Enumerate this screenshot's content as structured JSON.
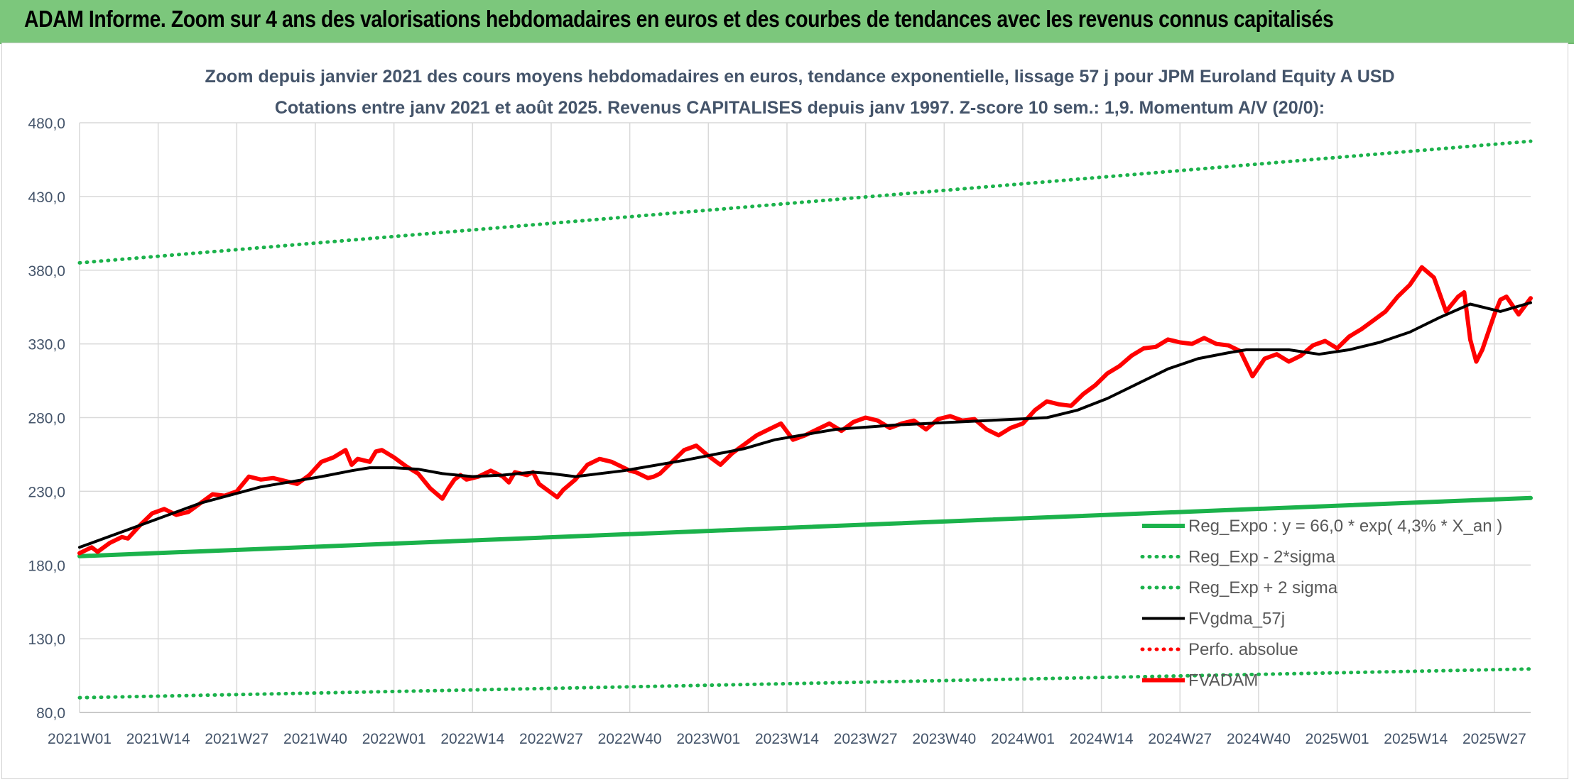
{
  "header": {
    "title": "ADAM Informe. Zoom sur 4 ans des valorisations hebdomadaires en euros et des courbes de tendances avec les revenus connus capitalisés"
  },
  "colors": {
    "header_bg": "#7cc77c",
    "trend_green": "#1bb24b",
    "fvadam_red": "#ff0000",
    "fvgdma_black": "#000000",
    "grid": "#d9d9d9",
    "text": "#44546a"
  },
  "chart_data": {
    "type": "line",
    "title": "Zoom depuis janvier 2021 des cours moyens hebdomadaires en euros, tendance exponentielle, lissage 57 j pour JPM Euroland Equity A USD",
    "subtitle": "Cotations entre janv 2021 et août 2025. Revenus CAPITALISES depuis janv 1997. Z-score 10 sem.: 1,9. Momentum A/V (20/0):",
    "ylim": [
      80,
      480
    ],
    "yticks": [
      "80,0",
      "130,0",
      "180,0",
      "230,0",
      "280,0",
      "330,0",
      "380,0",
      "430,0",
      "480,0"
    ],
    "ytick_values": [
      80,
      130,
      180,
      230,
      280,
      330,
      380,
      430,
      480
    ],
    "xticks": [
      "2021W01",
      "2021W14",
      "2021W27",
      "2021W40",
      "2022W01",
      "2022W14",
      "2022W27",
      "2022W40",
      "2023W01",
      "2023W14",
      "2023W27",
      "2023W40",
      "2024W01",
      "2024W14",
      "2024W27",
      "2024W40",
      "2025W01",
      "2025W14",
      "2025W27"
    ],
    "x_range_weeks": [
      0,
      240
    ],
    "grid": true,
    "legend_position": "bottom-right",
    "series": [
      {
        "name": "Reg_Expo : y = 66,0 * exp( 4,3% *  X_an )",
        "style": "solid-thick",
        "color": "#1bb24b",
        "x": [
          0,
          240
        ],
        "values": [
          186,
          225.5
        ]
      },
      {
        "name": "Reg_Exp - 2*sigma",
        "style": "dotted",
        "color": "#1bb24b",
        "x": [
          0,
          240
        ],
        "values": [
          90,
          109.5
        ]
      },
      {
        "name": "Reg_Exp + 2 sigma",
        "style": "dotted",
        "color": "#1bb24b",
        "x": [
          0,
          240
        ],
        "values": [
          385,
          467.5
        ]
      },
      {
        "name": "FVgdma_57j",
        "style": "solid",
        "color": "#000000",
        "x": [
          0,
          10,
          20,
          30,
          40,
          45,
          48,
          52,
          56,
          60,
          65,
          70,
          75,
          78,
          82,
          90,
          100,
          110,
          115,
          125,
          135,
          145,
          155,
          160,
          165,
          170,
          175,
          180,
          185,
          190,
          193,
          197,
          200,
          205,
          210,
          215,
          220,
          225,
          230,
          235,
          240
        ],
        "values": [
          192,
          207,
          222,
          233,
          240,
          244,
          246,
          246,
          245,
          242,
          240,
          241,
          243,
          242,
          240,
          244,
          251,
          259,
          265,
          272,
          275,
          277,
          279,
          280,
          285,
          293,
          303,
          313,
          320,
          324,
          326,
          326,
          326,
          323,
          326,
          331,
          338,
          348,
          357,
          352,
          358
        ]
      },
      {
        "name": "Perfo. absolue",
        "style": "dotted",
        "color": "#ff0000",
        "x": [],
        "values": []
      },
      {
        "name": "FVADAM",
        "style": "solid-thick",
        "color": "#ff0000",
        "x": [
          0,
          2,
          3,
          5,
          7,
          8,
          10,
          12,
          14,
          16,
          18,
          20,
          22,
          24,
          26,
          28,
          30,
          32,
          34,
          36,
          38,
          40,
          42,
          44,
          45,
          46,
          48,
          49,
          50,
          52,
          54,
          56,
          58,
          60,
          61,
          62,
          63,
          64,
          66,
          68,
          70,
          71,
          72,
          74,
          75,
          76,
          78,
          79,
          80,
          82,
          84,
          86,
          88,
          90,
          91,
          92,
          94,
          95,
          96,
          98,
          100,
          102,
          104,
          106,
          108,
          110,
          112,
          114,
          116,
          118,
          120,
          122,
          124,
          126,
          128,
          130,
          132,
          134,
          136,
          138,
          140,
          142,
          144,
          146,
          148,
          150,
          152,
          154,
          156,
          158,
          160,
          162,
          164,
          166,
          168,
          170,
          172,
          174,
          176,
          178,
          180,
          182,
          184,
          186,
          188,
          190,
          192,
          194,
          196,
          198,
          200,
          202,
          204,
          206,
          208,
          210,
          212,
          214,
          216,
          218,
          220,
          222,
          224,
          226,
          228,
          229,
          230,
          231,
          232,
          234,
          235,
          236,
          238,
          240
        ],
        "values": [
          188,
          192,
          189,
          195,
          199,
          198,
          207,
          215,
          218,
          214,
          216,
          222,
          228,
          227,
          230,
          240,
          238,
          239,
          237,
          235,
          241,
          250,
          253,
          258,
          248,
          252,
          250,
          257,
          258,
          253,
          247,
          242,
          232,
          225,
          232,
          238,
          241,
          238,
          240,
          244,
          240,
          236,
          243,
          241,
          243,
          235,
          229,
          226,
          231,
          238,
          248,
          252,
          250,
          246,
          244,
          243,
          239,
          240,
          242,
          250,
          258,
          261,
          254,
          248,
          256,
          262,
          268,
          272,
          276,
          265,
          268,
          272,
          276,
          271,
          277,
          280,
          278,
          273,
          276,
          278,
          272,
          279,
          281,
          278,
          279,
          272,
          268,
          273,
          276,
          285,
          291,
          289,
          288,
          296,
          302,
          310,
          315,
          322,
          327,
          328,
          333,
          331,
          330,
          334,
          330,
          329,
          325,
          308,
          320,
          323,
          318,
          322,
          329,
          332,
          327,
          335,
          340,
          346,
          352,
          362,
          370,
          382,
          375,
          352,
          362,
          365,
          333,
          318,
          326,
          350,
          360,
          362,
          350,
          361
        ]
      }
    ]
  }
}
